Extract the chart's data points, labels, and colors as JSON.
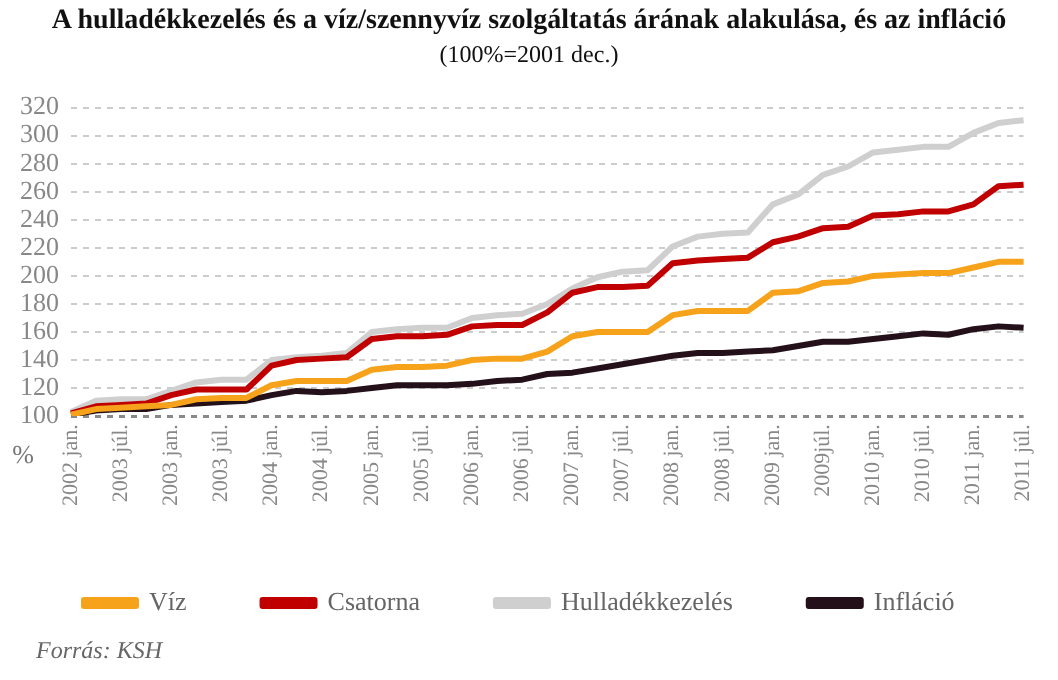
{
  "chart_data": {
    "type": "line",
    "title": "A hulladékkezelés és a víz/szennyvíz szolgáltatás árának alakulása, és az infláció",
    "subtitle": "(100%=2001 dec.)",
    "ylabel": "%",
    "categories": [
      "2002 jan.",
      null,
      "2003 júl.",
      null,
      "2003 jan.",
      null,
      "2003 júl.",
      null,
      "2004 jan.",
      null,
      "2004 júl.",
      null,
      "2005 jan.",
      null,
      "2005 júl.",
      null,
      "2006 jan.",
      null,
      "2006 júl.",
      null,
      "2007 jan.",
      null,
      "2007 júl.",
      null,
      "2008 jan.",
      null,
      "2008 júl.",
      null,
      "2009 jan.",
      null,
      "2009júl.",
      null,
      "2010 jan.",
      null,
      "2010 júl.",
      null,
      "2011 jan.",
      null,
      "2011 júl."
    ],
    "series": [
      {
        "name": "Víz",
        "color": "#f7a21b",
        "values": [
          101,
          105,
          106,
          107,
          108,
          112,
          113,
          113,
          122,
          125,
          125,
          125,
          133,
          135,
          135,
          136,
          140,
          141,
          141,
          146,
          157,
          160,
          160,
          160,
          172,
          175,
          175,
          175,
          188,
          189,
          195,
          196,
          200,
          201,
          202,
          202,
          206,
          210,
          210
        ]
      },
      {
        "name": "Csatorna",
        "color": "#c00000",
        "values": [
          102,
          107,
          108,
          109,
          115,
          119,
          119,
          119,
          136,
          140,
          141,
          142,
          155,
          157,
          157,
          158,
          164,
          165,
          165,
          174,
          188,
          192,
          192,
          193,
          209,
          211,
          212,
          213,
          224,
          228,
          234,
          235,
          243,
          244,
          246,
          246,
          251,
          264,
          265
        ]
      },
      {
        "name": "Hulladékkezelés",
        "color": "#cfcfcf",
        "values": [
          103,
          111,
          112,
          112,
          118,
          124,
          126,
          126,
          140,
          142,
          143,
          145,
          160,
          162,
          163,
          163,
          170,
          172,
          173,
          180,
          191,
          199,
          203,
          204,
          221,
          228,
          230,
          231,
          251,
          258,
          272,
          278,
          288,
          290,
          292,
          292,
          302,
          309,
          311
        ]
      },
      {
        "name": "Infláció",
        "color": "#231018",
        "values": [
          101,
          104,
          105,
          105,
          108,
          109,
          110,
          111,
          115,
          118,
          117,
          118,
          120,
          122,
          122,
          122,
          123,
          125,
          126,
          130,
          131,
          134,
          137,
          140,
          143,
          145,
          145,
          146,
          147,
          150,
          153,
          153,
          155,
          157,
          159,
          158,
          162,
          164,
          163
        ]
      }
    ],
    "ylim": [
      100,
      320
    ],
    "yticks": [
      100,
      120,
      140,
      160,
      180,
      200,
      220,
      240,
      260,
      280,
      300,
      320
    ],
    "grid": "y",
    "legend": "bottom",
    "marker": "none",
    "line_style": "solid",
    "annotations": [
      "Forrás: KSH"
    ]
  }
}
